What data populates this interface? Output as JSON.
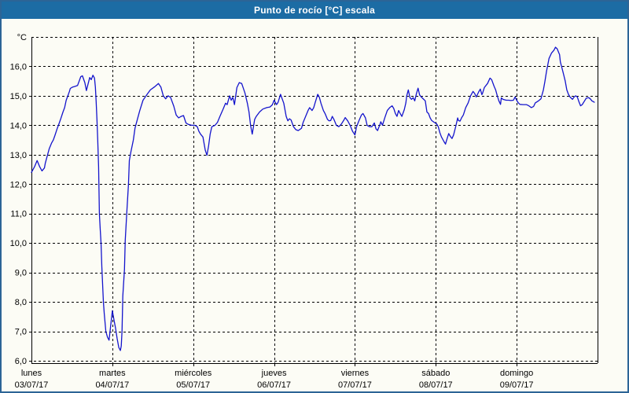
{
  "header": {
    "title": "Punto de rocío [°C] escala"
  },
  "colors": {
    "title_bar_bg": "#1C6CA4",
    "window_border": "#2C6496",
    "series_line": "#1414CC",
    "grid": "#000000",
    "label_text": "#000000",
    "background": "#FCFCF5"
  },
  "chart_data": {
    "type": "line",
    "title": "Punto de rocío [°C] escala",
    "xlabel": "",
    "ylabel": "°C",
    "grid": "dashed",
    "legend_position": "none",
    "number_format": "decimal-comma",
    "y_axis": {
      "unit": "°C",
      "min": 5.9,
      "max": 17.0,
      "top_line_value": 17,
      "tick_values": [
        16,
        15,
        14,
        13,
        12,
        11,
        10,
        9,
        8,
        7,
        6
      ],
      "tick_labels": [
        "16,0",
        "15,0",
        "14,0",
        "13,0",
        "12,0",
        "11,0",
        "10,0",
        "9,0",
        "8,0",
        "7,0",
        "6,0"
      ]
    },
    "x_axis": {
      "range_days": [
        0,
        7
      ],
      "days": [
        {
          "name": "lunes",
          "date": "03/07/17"
        },
        {
          "name": "martes",
          "date": "04/07/17"
        },
        {
          "name": "miércoles",
          "date": "05/07/17"
        },
        {
          "name": "jueves",
          "date": "06/07/17"
        },
        {
          "name": "viernes",
          "date": "07/07/17"
        },
        {
          "name": "sábado",
          "date": "08/07/17"
        },
        {
          "name": "domingo",
          "date": "09/07/17"
        }
      ]
    },
    "series": [
      {
        "name": "Punto de rocío",
        "color": "#1414CC",
        "points": [
          [
            0.0,
            12.4
          ],
          [
            0.04,
            12.6
          ],
          [
            0.07,
            12.8
          ],
          [
            0.1,
            12.6
          ],
          [
            0.13,
            12.45
          ],
          [
            0.16,
            12.55
          ],
          [
            0.17,
            12.7
          ],
          [
            0.19,
            12.9
          ],
          [
            0.22,
            13.2
          ],
          [
            0.25,
            13.4
          ],
          [
            0.27,
            13.5
          ],
          [
            0.29,
            13.65
          ],
          [
            0.32,
            13.9
          ],
          [
            0.34,
            14.05
          ],
          [
            0.36,
            14.2
          ],
          [
            0.39,
            14.45
          ],
          [
            0.41,
            14.6
          ],
          [
            0.43,
            14.85
          ],
          [
            0.45,
            15.0
          ],
          [
            0.47,
            15.15
          ],
          [
            0.48,
            15.25
          ],
          [
            0.51,
            15.3
          ],
          [
            0.54,
            15.32
          ],
          [
            0.57,
            15.35
          ],
          [
            0.59,
            15.5
          ],
          [
            0.61,
            15.65
          ],
          [
            0.63,
            15.68
          ],
          [
            0.66,
            15.45
          ],
          [
            0.68,
            15.18
          ],
          [
            0.7,
            15.4
          ],
          [
            0.72,
            15.62
          ],
          [
            0.74,
            15.55
          ],
          [
            0.76,
            15.7
          ],
          [
            0.78,
            15.6
          ],
          [
            0.79,
            15.3
          ],
          [
            0.8,
            14.8
          ],
          [
            0.81,
            14.2
          ],
          [
            0.82,
            13.5
          ],
          [
            0.83,
            12.6
          ],
          [
            0.84,
            11.0
          ],
          [
            0.85,
            10.5
          ],
          [
            0.86,
            10.0
          ],
          [
            0.87,
            9.2
          ],
          [
            0.88,
            8.6
          ],
          [
            0.89,
            8.0
          ],
          [
            0.9,
            7.6
          ],
          [
            0.92,
            7.0
          ],
          [
            0.94,
            6.8
          ],
          [
            0.96,
            6.7
          ],
          [
            0.98,
            7.2
          ],
          [
            1.0,
            7.7
          ],
          [
            1.02,
            7.4
          ],
          [
            1.04,
            7.1
          ],
          [
            1.06,
            6.75
          ],
          [
            1.08,
            6.45
          ],
          [
            1.1,
            6.35
          ],
          [
            1.11,
            6.5
          ],
          [
            1.12,
            7.0
          ],
          [
            1.13,
            8.2
          ],
          [
            1.15,
            9.1
          ],
          [
            1.16,
            10.1
          ],
          [
            1.18,
            11.1
          ],
          [
            1.2,
            12.0
          ],
          [
            1.21,
            12.8
          ],
          [
            1.23,
            13.1
          ],
          [
            1.26,
            13.5
          ],
          [
            1.28,
            13.9
          ],
          [
            1.31,
            14.2
          ],
          [
            1.34,
            14.5
          ],
          [
            1.38,
            14.85
          ],
          [
            1.43,
            15.05
          ],
          [
            1.47,
            15.2
          ],
          [
            1.52,
            15.3
          ],
          [
            1.57,
            15.42
          ],
          [
            1.6,
            15.3
          ],
          [
            1.63,
            15.0
          ],
          [
            1.66,
            14.9
          ],
          [
            1.69,
            15.0
          ],
          [
            1.72,
            14.95
          ],
          [
            1.76,
            14.65
          ],
          [
            1.79,
            14.35
          ],
          [
            1.82,
            14.25
          ],
          [
            1.85,
            14.3
          ],
          [
            1.88,
            14.33
          ],
          [
            1.91,
            14.08
          ],
          [
            1.94,
            14.03
          ],
          [
            1.98,
            14.0
          ],
          [
            2.02,
            14.0
          ],
          [
            2.05,
            13.95
          ],
          [
            2.07,
            13.8
          ],
          [
            2.09,
            13.7
          ],
          [
            2.12,
            13.6
          ],
          [
            2.15,
            13.15
          ],
          [
            2.17,
            12.98
          ],
          [
            2.19,
            13.3
          ],
          [
            2.21,
            13.7
          ],
          [
            2.23,
            13.95
          ],
          [
            2.27,
            14.0
          ],
          [
            2.3,
            14.1
          ],
          [
            2.33,
            14.3
          ],
          [
            2.37,
            14.55
          ],
          [
            2.4,
            14.75
          ],
          [
            2.42,
            14.7
          ],
          [
            2.45,
            15.0
          ],
          [
            2.47,
            14.85
          ],
          [
            2.49,
            14.95
          ],
          [
            2.51,
            14.7
          ],
          [
            2.54,
            15.28
          ],
          [
            2.57,
            15.45
          ],
          [
            2.6,
            15.42
          ],
          [
            2.64,
            15.1
          ],
          [
            2.67,
            14.75
          ],
          [
            2.69,
            14.45
          ],
          [
            2.71,
            14.0
          ],
          [
            2.73,
            13.7
          ],
          [
            2.76,
            14.2
          ],
          [
            2.78,
            14.3
          ],
          [
            2.82,
            14.45
          ],
          [
            2.86,
            14.55
          ],
          [
            2.91,
            14.6
          ],
          [
            2.95,
            14.62
          ],
          [
            2.98,
            14.7
          ],
          [
            3.0,
            14.85
          ],
          [
            3.03,
            14.7
          ],
          [
            3.05,
            14.78
          ],
          [
            3.08,
            15.05
          ],
          [
            3.12,
            14.75
          ],
          [
            3.15,
            14.3
          ],
          [
            3.17,
            14.15
          ],
          [
            3.19,
            14.22
          ],
          [
            3.21,
            14.18
          ],
          [
            3.24,
            13.95
          ],
          [
            3.27,
            13.85
          ],
          [
            3.3,
            13.82
          ],
          [
            3.34,
            13.9
          ],
          [
            3.36,
            14.1
          ],
          [
            3.39,
            14.3
          ],
          [
            3.42,
            14.5
          ],
          [
            3.44,
            14.6
          ],
          [
            3.47,
            14.5
          ],
          [
            3.49,
            14.6
          ],
          [
            3.51,
            14.78
          ],
          [
            3.54,
            15.05
          ],
          [
            3.56,
            14.95
          ],
          [
            3.58,
            14.75
          ],
          [
            3.61,
            14.5
          ],
          [
            3.63,
            14.4
          ],
          [
            3.66,
            14.2
          ],
          [
            3.68,
            14.15
          ],
          [
            3.7,
            14.16
          ],
          [
            3.72,
            14.3
          ],
          [
            3.74,
            14.2
          ],
          [
            3.77,
            14.0
          ],
          [
            3.8,
            13.95
          ],
          [
            3.83,
            14.03
          ],
          [
            3.86,
            14.16
          ],
          [
            3.88,
            14.26
          ],
          [
            3.91,
            14.15
          ],
          [
            3.94,
            14.0
          ],
          [
            3.97,
            13.8
          ],
          [
            4.0,
            13.67
          ],
          [
            4.02,
            13.95
          ],
          [
            4.05,
            14.16
          ],
          [
            4.08,
            14.35
          ],
          [
            4.1,
            14.4
          ],
          [
            4.13,
            14.25
          ],
          [
            4.15,
            14.0
          ],
          [
            4.18,
            13.95
          ],
          [
            4.21,
            13.95
          ],
          [
            4.24,
            14.08
          ],
          [
            4.26,
            13.88
          ],
          [
            4.28,
            13.82
          ],
          [
            4.31,
            14.03
          ],
          [
            4.32,
            14.12
          ],
          [
            4.34,
            14.0
          ],
          [
            4.37,
            14.26
          ],
          [
            4.4,
            14.5
          ],
          [
            4.43,
            14.6
          ],
          [
            4.46,
            14.66
          ],
          [
            4.48,
            14.57
          ],
          [
            4.5,
            14.4
          ],
          [
            4.52,
            14.3
          ],
          [
            4.54,
            14.5
          ],
          [
            4.56,
            14.4
          ],
          [
            4.58,
            14.3
          ],
          [
            4.61,
            14.53
          ],
          [
            4.63,
            14.76
          ],
          [
            4.64,
            15.0
          ],
          [
            4.66,
            15.2
          ],
          [
            4.68,
            14.94
          ],
          [
            4.7,
            14.88
          ],
          [
            4.72,
            14.94
          ],
          [
            4.74,
            14.83
          ],
          [
            4.76,
            15.07
          ],
          [
            4.78,
            15.26
          ],
          [
            4.8,
            15.03
          ],
          [
            4.82,
            14.96
          ],
          [
            4.85,
            14.88
          ],
          [
            4.87,
            14.83
          ],
          [
            4.89,
            14.45
          ],
          [
            4.91,
            14.4
          ],
          [
            4.93,
            14.25
          ],
          [
            4.95,
            14.16
          ],
          [
            4.98,
            14.1
          ],
          [
            5.01,
            14.05
          ],
          [
            5.03,
            13.95
          ],
          [
            5.05,
            13.75
          ],
          [
            5.07,
            13.6
          ],
          [
            5.1,
            13.45
          ],
          [
            5.12,
            13.36
          ],
          [
            5.14,
            13.55
          ],
          [
            5.16,
            13.72
          ],
          [
            5.18,
            13.62
          ],
          [
            5.2,
            13.55
          ],
          [
            5.22,
            13.67
          ],
          [
            5.25,
            14.0
          ],
          [
            5.27,
            14.25
          ],
          [
            5.28,
            14.16
          ],
          [
            5.3,
            14.14
          ],
          [
            5.32,
            14.26
          ],
          [
            5.34,
            14.35
          ],
          [
            5.37,
            14.6
          ],
          [
            5.4,
            14.76
          ],
          [
            5.43,
            15.0
          ],
          [
            5.46,
            15.15
          ],
          [
            5.48,
            15.08
          ],
          [
            5.5,
            14.96
          ],
          [
            5.53,
            15.13
          ],
          [
            5.55,
            15.23
          ],
          [
            5.57,
            15.04
          ],
          [
            5.58,
            15.1
          ],
          [
            5.6,
            15.28
          ],
          [
            5.64,
            15.42
          ],
          [
            5.67,
            15.6
          ],
          [
            5.69,
            15.55
          ],
          [
            5.72,
            15.33
          ],
          [
            5.74,
            15.2
          ],
          [
            5.76,
            15.0
          ],
          [
            5.78,
            14.83
          ],
          [
            5.8,
            14.71
          ],
          [
            5.81,
            14.93
          ],
          [
            5.83,
            14.88
          ],
          [
            5.87,
            14.85
          ],
          [
            5.9,
            14.85
          ],
          [
            5.93,
            14.84
          ],
          [
            5.96,
            14.85
          ],
          [
            5.98,
            14.96
          ],
          [
            6.0,
            14.85
          ],
          [
            6.02,
            14.76
          ],
          [
            6.04,
            14.71
          ],
          [
            6.08,
            14.7
          ],
          [
            6.12,
            14.7
          ],
          [
            6.15,
            14.66
          ],
          [
            6.18,
            14.6
          ],
          [
            6.21,
            14.64
          ],
          [
            6.23,
            14.76
          ],
          [
            6.27,
            14.83
          ],
          [
            6.3,
            14.9
          ],
          [
            6.33,
            15.2
          ],
          [
            6.35,
            15.5
          ],
          [
            6.37,
            15.85
          ],
          [
            6.4,
            16.27
          ],
          [
            6.43,
            16.45
          ],
          [
            6.46,
            16.55
          ],
          [
            6.48,
            16.65
          ],
          [
            6.5,
            16.6
          ],
          [
            6.53,
            16.4
          ],
          [
            6.54,
            16.15
          ],
          [
            6.56,
            15.95
          ],
          [
            6.58,
            15.73
          ],
          [
            6.6,
            15.5
          ],
          [
            6.62,
            15.2
          ],
          [
            6.64,
            15.05
          ],
          [
            6.66,
            14.96
          ],
          [
            6.69,
            14.88
          ],
          [
            6.71,
            14.96
          ],
          [
            6.73,
            15.0
          ],
          [
            6.75,
            14.96
          ],
          [
            6.77,
            14.8
          ],
          [
            6.79,
            14.66
          ],
          [
            6.81,
            14.7
          ],
          [
            6.84,
            14.83
          ],
          [
            6.86,
            14.92
          ],
          [
            6.89,
            14.94
          ],
          [
            6.91,
            14.9
          ],
          [
            6.93,
            14.83
          ],
          [
            6.96,
            14.78
          ]
        ]
      }
    ]
  }
}
